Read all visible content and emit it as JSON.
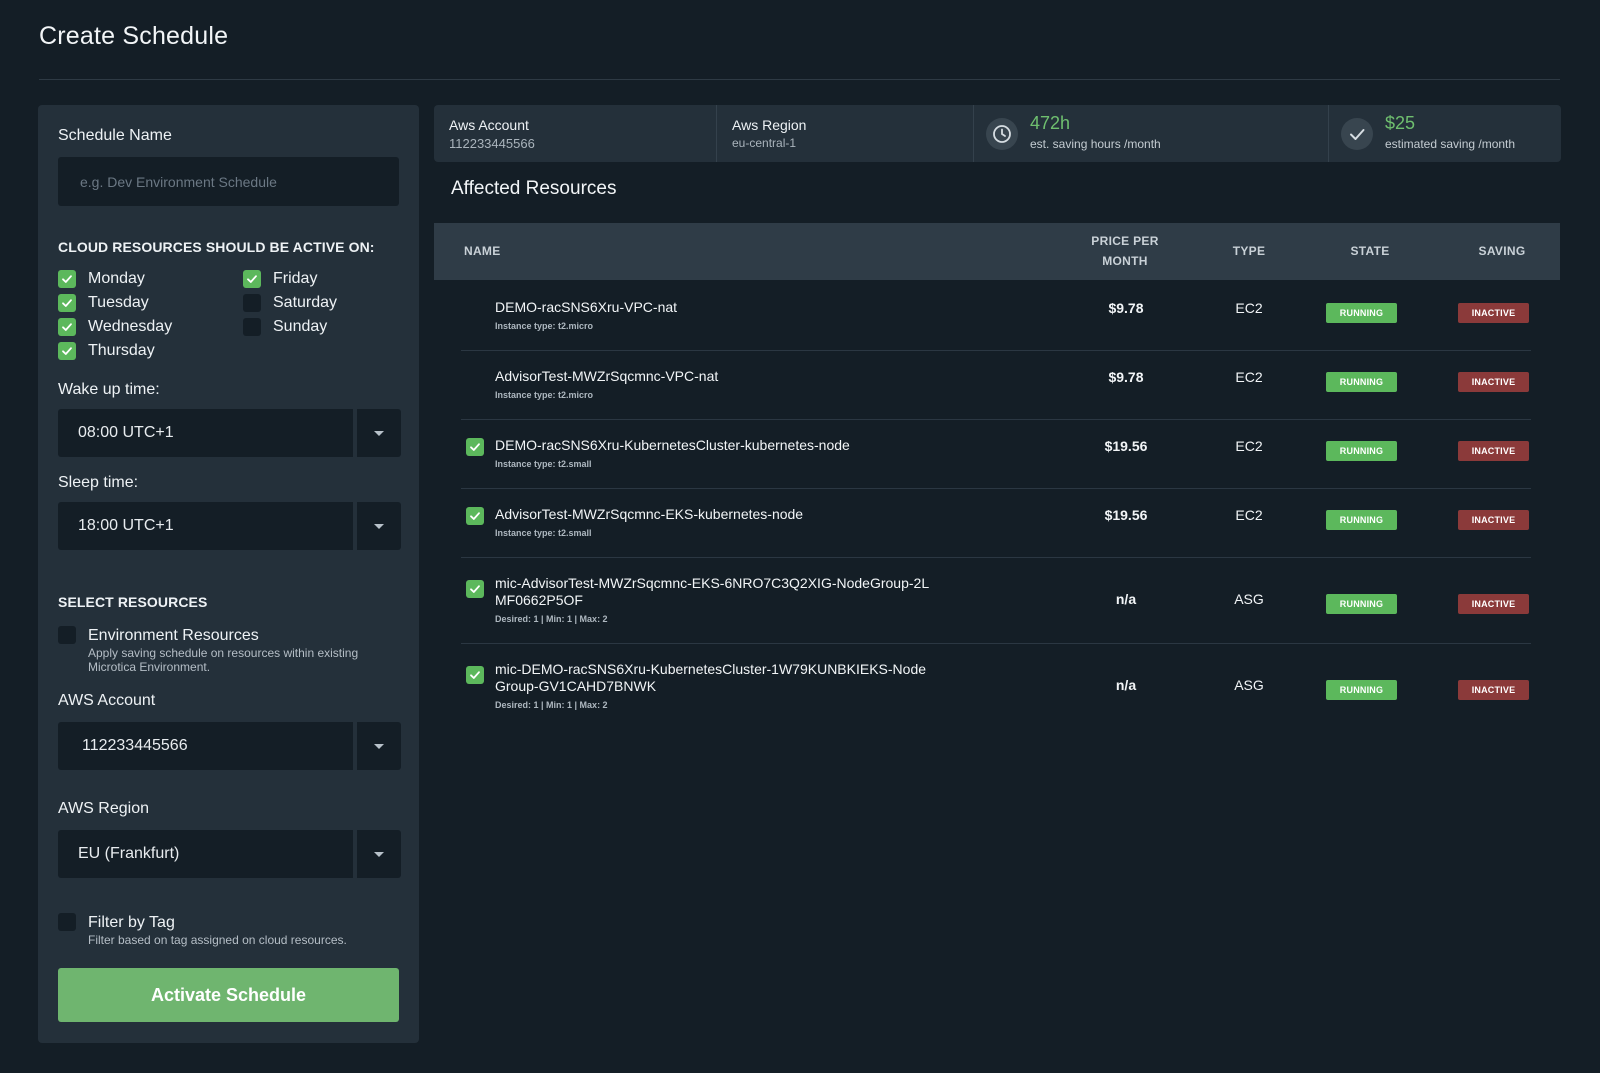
{
  "page": {
    "title": "Create Schedule"
  },
  "form": {
    "schedule_name_label": "Schedule Name",
    "schedule_name_placeholder": "e.g. Dev Environment Schedule",
    "active_days_heading": "CLOUD RESOURCES SHOULD BE ACTIVE ON:",
    "days": [
      {
        "label": "Monday",
        "checked": true
      },
      {
        "label": "Tuesday",
        "checked": true
      },
      {
        "label": "Wednesday",
        "checked": true
      },
      {
        "label": "Thursday",
        "checked": true
      },
      {
        "label": "Friday",
        "checked": true
      },
      {
        "label": "Saturday",
        "checked": false
      },
      {
        "label": "Sunday",
        "checked": false
      }
    ],
    "wake_up_label": "Wake up time:",
    "wake_up_value": "08:00 UTC+1",
    "sleep_label": "Sleep time:",
    "sleep_value": "18:00 UTC+1",
    "select_resources_heading": "SELECT RESOURCES",
    "env_resources_title": "Environment Resources",
    "env_resources_desc": "Apply saving schedule on resources within existing Microtica Environment.",
    "aws_account_label": "AWS Account",
    "aws_account_value": "112233445566",
    "aws_region_label": "AWS Region",
    "aws_region_value": "EU (Frankfurt)",
    "filter_tag_title": "Filter by Tag",
    "filter_tag_desc": "Filter based on tag assigned on cloud resources.",
    "activate_button": "Activate Schedule"
  },
  "summary": {
    "account_label": "Aws Account",
    "account_value": "112233445566",
    "region_label": "Aws Region",
    "region_value": "eu-central-1",
    "hours_value": "472h",
    "hours_label": "est. saving hours /month",
    "saving_value": "$25",
    "saving_label": "estimated saving /month",
    "accent_color": "#6fbf6f"
  },
  "affected": {
    "title": "Affected Resources",
    "columns": {
      "name": "NAME",
      "price_line1": "PRICE PER",
      "price_line2": "MONTH",
      "type": "TYPE",
      "state": "STATE",
      "saving": "SAVING"
    },
    "rows": [
      {
        "checked": false,
        "name": "DEMO-racSNS6Xru-VPC-nat",
        "sub": "Instance type: t2.micro",
        "price": "$9.78",
        "type": "EC2",
        "state": "RUNNING",
        "saving": "INACTIVE"
      },
      {
        "checked": false,
        "name": "AdvisorTest-MWZrSqcmnc-VPC-nat",
        "sub": "Instance type: t2.micro",
        "price": "$9.78",
        "type": "EC2",
        "state": "RUNNING",
        "saving": "INACTIVE"
      },
      {
        "checked": true,
        "name": "DEMO-racSNS6Xru-KubernetesCluster-kubernetes-node",
        "sub": "Instance type: t2.small",
        "price": "$19.56",
        "type": "EC2",
        "state": "RUNNING",
        "saving": "INACTIVE"
      },
      {
        "checked": true,
        "name": "AdvisorTest-MWZrSqcmnc-EKS-kubernetes-node",
        "sub": "Instance type: t2.small",
        "price": "$19.56",
        "type": "EC2",
        "state": "RUNNING",
        "saving": "INACTIVE"
      },
      {
        "checked": true,
        "name": "mic-AdvisorTest-MWZrSqcmnc-EKS-6NRO7C3Q2XIG-NodeGroup-2LMF0662P5OF",
        "sub": "Desired: 1 | Min: 1 | Max: 2",
        "price": "n/a",
        "type": "ASG",
        "state": "RUNNING",
        "saving": "INACTIVE"
      },
      {
        "checked": true,
        "name": "mic-DEMO-racSNS6Xru-KubernetesCluster-1W79KUNBKIEKS-NodeGroup-GV1CAHD7BNWK",
        "sub": "Desired: 1 | Min: 1 | Max: 2",
        "price": "n/a",
        "type": "ASG",
        "state": "RUNNING",
        "saving": "INACTIVE"
      }
    ]
  },
  "colors": {
    "running": "#5cb85c",
    "inactive": "#8b3a3a",
    "button": "#6fb56f"
  }
}
